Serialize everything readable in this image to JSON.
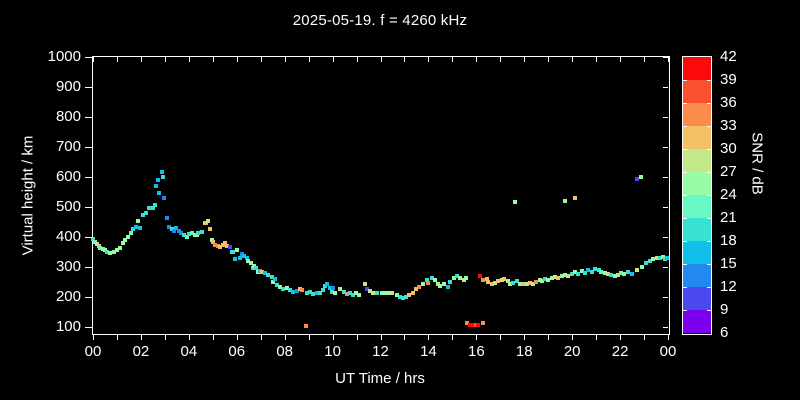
{
  "title": "2025-05-19. f = 4260 kHz",
  "chart_data": {
    "type": "scatter",
    "title": "2025-05-19. f = 4260 kHz",
    "xlabel": "UT Time / hrs",
    "ylabel": "Virtual height / km",
    "colorbar_label": "SNR / dB",
    "x_range_hours": [
      0,
      24
    ],
    "x_tick_hours": [
      0,
      2,
      4,
      6,
      8,
      10,
      12,
      14,
      16,
      18,
      20,
      22,
      24
    ],
    "x_tick_labels": [
      "00",
      "02",
      "04",
      "06",
      "08",
      "10",
      "12",
      "14",
      "16",
      "18",
      "20",
      "22",
      "00"
    ],
    "x_minor_tick_every_hours": 1,
    "y_ticks": [
      100,
      200,
      300,
      400,
      500,
      600,
      700,
      800,
      900,
      1000
    ],
    "y_range": [
      80,
      1000
    ],
    "grid": false,
    "background_color": "#000000",
    "axis_color": "#ffffff",
    "colorbar_ticks_top_to_bottom": [
      42,
      39,
      36,
      33,
      30,
      27,
      24,
      21,
      18,
      15,
      12,
      9,
      6
    ],
    "colorbar_colors_top_to_bottom": [
      "#FA0A0A",
      "#FA5030",
      "#FB8C4C",
      "#F2C165",
      "#C3E88A",
      "#98FBA5",
      "#66F9C3",
      "#38E2D2",
      "#10C0E8",
      "#2289F0",
      "#4B48F0",
      "#7B00EE"
    ],
    "snr_min": 6,
    "snr_step": 3,
    "points_format": [
      "ut_hour",
      "virtual_height_km",
      "snr_db"
    ],
    "points": [
      [
        0.02,
        392,
        18
      ],
      [
        0.1,
        384,
        21
      ],
      [
        0.17,
        377,
        27
      ],
      [
        0.23,
        371,
        30
      ],
      [
        0.31,
        364,
        21
      ],
      [
        0.4,
        360,
        24
      ],
      [
        0.48,
        357,
        24
      ],
      [
        0.6,
        351,
        18
      ],
      [
        0.73,
        346,
        24
      ],
      [
        0.88,
        349,
        24
      ],
      [
        1.0,
        357,
        24
      ],
      [
        1.11,
        364,
        24
      ],
      [
        1.25,
        379,
        24
      ],
      [
        1.35,
        390,
        24
      ],
      [
        1.46,
        401,
        24
      ],
      [
        1.57,
        412,
        21
      ],
      [
        1.67,
        426,
        18
      ],
      [
        1.81,
        434,
        16
      ],
      [
        1.97,
        431,
        16
      ],
      [
        1.89,
        453,
        24
      ],
      [
        2.1,
        473,
        18
      ],
      [
        2.22,
        481,
        20
      ],
      [
        2.34,
        498,
        18
      ],
      [
        2.52,
        498,
        18
      ],
      [
        2.6,
        507,
        18
      ],
      [
        2.63,
        571,
        16
      ],
      [
        2.7,
        589,
        16
      ],
      [
        2.77,
        548,
        16
      ],
      [
        2.87,
        618,
        16
      ],
      [
        2.92,
        601,
        18
      ],
      [
        2.98,
        529,
        13
      ],
      [
        3.08,
        462,
        12
      ],
      [
        3.19,
        434,
        14
      ],
      [
        3.28,
        427,
        18
      ],
      [
        3.38,
        420,
        12
      ],
      [
        3.48,
        429,
        16
      ],
      [
        3.58,
        421,
        12
      ],
      [
        3.68,
        415,
        13
      ],
      [
        3.8,
        408,
        18
      ],
      [
        3.92,
        400,
        21
      ],
      [
        4.02,
        410,
        18
      ],
      [
        4.12,
        412,
        21
      ],
      [
        4.25,
        406,
        24
      ],
      [
        4.33,
        407,
        27
      ],
      [
        4.4,
        412,
        18
      ],
      [
        4.56,
        418,
        18
      ],
      [
        4.67,
        446,
        24
      ],
      [
        4.72,
        448,
        30
      ],
      [
        4.81,
        453,
        27
      ],
      [
        4.88,
        427,
        30
      ],
      [
        4.95,
        390,
        26
      ],
      [
        5.02,
        382,
        32
      ],
      [
        5.09,
        373,
        35
      ],
      [
        5.2,
        371,
        34
      ],
      [
        5.3,
        368,
        30
      ],
      [
        5.43,
        374,
        30
      ],
      [
        5.51,
        379,
        30
      ],
      [
        5.58,
        370,
        31
      ],
      [
        5.72,
        366,
        11
      ],
      [
        5.79,
        350,
        18
      ],
      [
        5.86,
        351,
        20
      ],
      [
        5.93,
        326,
        17
      ],
      [
        6.0,
        357,
        26
      ],
      [
        6.13,
        329,
        17
      ],
      [
        6.2,
        343,
        12
      ],
      [
        6.31,
        337,
        17
      ],
      [
        6.41,
        331,
        17
      ],
      [
        6.45,
        321,
        24
      ],
      [
        6.59,
        313,
        26
      ],
      [
        6.69,
        298,
        20
      ],
      [
        6.72,
        304,
        25
      ],
      [
        6.82,
        296,
        20
      ],
      [
        6.9,
        282,
        25
      ],
      [
        6.96,
        288,
        17
      ],
      [
        7.04,
        284,
        26
      ],
      [
        7.06,
        285,
        32
      ],
      [
        7.18,
        279,
        16
      ],
      [
        7.32,
        274,
        20
      ],
      [
        7.46,
        266,
        20
      ],
      [
        7.53,
        251,
        25
      ],
      [
        7.6,
        260,
        16
      ],
      [
        7.67,
        240,
        20
      ],
      [
        7.81,
        234,
        25
      ],
      [
        7.95,
        227,
        20
      ],
      [
        8.09,
        231,
        25
      ],
      [
        8.22,
        223,
        20
      ],
      [
        8.36,
        217,
        16
      ],
      [
        8.5,
        220,
        13
      ],
      [
        8.64,
        227,
        30
      ],
      [
        8.73,
        223,
        33
      ],
      [
        8.88,
        105,
        35
      ],
      [
        8.92,
        215,
        20
      ],
      [
        9.06,
        217,
        20
      ],
      [
        9.2,
        210,
        20
      ],
      [
        9.34,
        215,
        17
      ],
      [
        9.48,
        212,
        20
      ],
      [
        9.62,
        224,
        20
      ],
      [
        9.68,
        238,
        20
      ],
      [
        9.75,
        245,
        17
      ],
      [
        9.89,
        229,
        15
      ],
      [
        9.96,
        218,
        20
      ],
      [
        10.03,
        231,
        12
      ],
      [
        10.1,
        212,
        25
      ],
      [
        10.31,
        226,
        29
      ],
      [
        10.48,
        218,
        20
      ],
      [
        10.59,
        210,
        34
      ],
      [
        10.73,
        214,
        20
      ],
      [
        10.84,
        207,
        20
      ],
      [
        10.98,
        212,
        25
      ],
      [
        11.12,
        207,
        25
      ],
      [
        11.35,
        243,
        29
      ],
      [
        11.45,
        226,
        11
      ],
      [
        11.56,
        221,
        29
      ],
      [
        11.7,
        214,
        29
      ],
      [
        11.87,
        212,
        20
      ],
      [
        12.05,
        214,
        25
      ],
      [
        12.19,
        212,
        25
      ],
      [
        12.33,
        214,
        25
      ],
      [
        12.47,
        212,
        27
      ],
      [
        12.67,
        207,
        25
      ],
      [
        12.81,
        199,
        20
      ],
      [
        12.93,
        196,
        20
      ],
      [
        13.06,
        199,
        20
      ],
      [
        13.2,
        207,
        31
      ],
      [
        13.34,
        212,
        31
      ],
      [
        13.48,
        226,
        31
      ],
      [
        13.62,
        234,
        34
      ],
      [
        13.76,
        243,
        25
      ],
      [
        13.93,
        256,
        20
      ],
      [
        14.0,
        247,
        34
      ],
      [
        14.14,
        262,
        20
      ],
      [
        14.28,
        256,
        25
      ],
      [
        14.42,
        245,
        29
      ],
      [
        14.49,
        236,
        25
      ],
      [
        14.63,
        243,
        25
      ],
      [
        14.8,
        234,
        16
      ],
      [
        14.91,
        251,
        20
      ],
      [
        15.05,
        262,
        25
      ],
      [
        15.19,
        270,
        20
      ],
      [
        15.33,
        262,
        25
      ],
      [
        15.47,
        256,
        29
      ],
      [
        15.58,
        265,
        25
      ],
      [
        15.6,
        112,
        34
      ],
      [
        15.73,
        108,
        40
      ],
      [
        15.87,
        106,
        40
      ],
      [
        15.97,
        107,
        38
      ],
      [
        16.08,
        106,
        40
      ],
      [
        16.26,
        112,
        35
      ],
      [
        16.15,
        271,
        40
      ],
      [
        16.29,
        256,
        35
      ],
      [
        16.43,
        259,
        31
      ],
      [
        16.5,
        251,
        31
      ],
      [
        16.64,
        245,
        31
      ],
      [
        16.78,
        248,
        29
      ],
      [
        16.92,
        253,
        31
      ],
      [
        17.06,
        256,
        29
      ],
      [
        17.17,
        259,
        31
      ],
      [
        17.31,
        253,
        29
      ],
      [
        17.4,
        245,
        25
      ],
      [
        17.54,
        248,
        20
      ],
      [
        17.68,
        253,
        20
      ],
      [
        17.82,
        245,
        25
      ],
      [
        17.96,
        242,
        31
      ],
      [
        18.1,
        245,
        25
      ],
      [
        18.24,
        248,
        31
      ],
      [
        18.37,
        245,
        29
      ],
      [
        18.51,
        251,
        35
      ],
      [
        18.65,
        256,
        25
      ],
      [
        17.61,
        516,
        26
      ],
      [
        19.7,
        520,
        26
      ],
      [
        20.12,
        531,
        32
      ],
      [
        22.69,
        593,
        10
      ],
      [
        22.86,
        599,
        26
      ],
      [
        18.75,
        253,
        25
      ],
      [
        18.86,
        259,
        20
      ],
      [
        19.0,
        256,
        25
      ],
      [
        19.14,
        264,
        25
      ],
      [
        19.28,
        267,
        29
      ],
      [
        19.42,
        264,
        31
      ],
      [
        19.56,
        270,
        25
      ],
      [
        19.7,
        275,
        25
      ],
      [
        19.84,
        270,
        29
      ],
      [
        19.98,
        278,
        20
      ],
      [
        20.12,
        284,
        25
      ],
      [
        20.26,
        278,
        20
      ],
      [
        20.4,
        286,
        25
      ],
      [
        20.54,
        281,
        20
      ],
      [
        20.68,
        289,
        16
      ],
      [
        20.82,
        284,
        20
      ],
      [
        20.96,
        293,
        20
      ],
      [
        21.1,
        289,
        20
      ],
      [
        21.22,
        283,
        22
      ],
      [
        21.35,
        280,
        25
      ],
      [
        21.5,
        276,
        29
      ],
      [
        21.64,
        272,
        20
      ],
      [
        21.78,
        270,
        25
      ],
      [
        21.9,
        275,
        29
      ],
      [
        22.04,
        280,
        22
      ],
      [
        22.18,
        277,
        25
      ],
      [
        22.32,
        282,
        20
      ],
      [
        22.48,
        278,
        16
      ],
      [
        22.7,
        290,
        29
      ],
      [
        22.9,
        301,
        25
      ],
      [
        23.1,
        312,
        20
      ],
      [
        23.24,
        320,
        20
      ],
      [
        23.38,
        327,
        26
      ],
      [
        23.52,
        329,
        29
      ],
      [
        23.66,
        331,
        20
      ],
      [
        23.8,
        334,
        25
      ],
      [
        23.88,
        327,
        20
      ],
      [
        23.96,
        331,
        17
      ]
    ]
  }
}
